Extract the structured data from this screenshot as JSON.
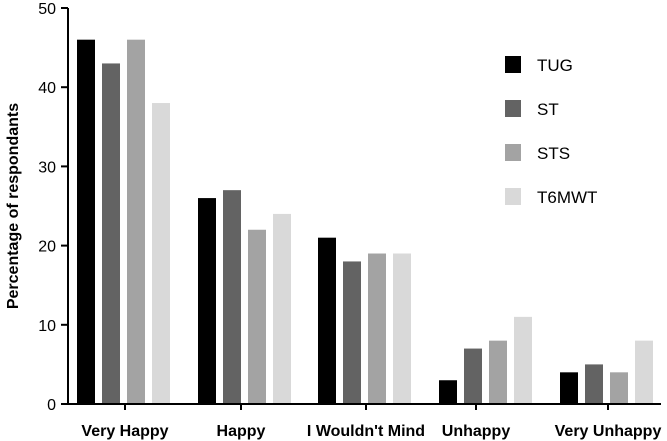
{
  "chart_data": {
    "type": "bar",
    "title": "",
    "xlabel": "",
    "ylabel": "Percentage of respondants",
    "ylim": [
      0,
      50
    ],
    "yticks": [
      0,
      10,
      20,
      30,
      40,
      50
    ],
    "grid": false,
    "legend_position": "top-right",
    "categories": [
      "Very Happy",
      "Happy",
      "I Wouldn't Mind",
      "Unhappy",
      "Very Unhappy"
    ],
    "series": [
      {
        "name": "TUG",
        "color": "#000000",
        "values": [
          46,
          26,
          21,
          3,
          4
        ]
      },
      {
        "name": "ST",
        "color": "#636363",
        "values": [
          43,
          27,
          18,
          7,
          5
        ]
      },
      {
        "name": "STS",
        "color": "#a3a3a3",
        "values": [
          46,
          22,
          19,
          8,
          4
        ]
      },
      {
        "name": "T6MWT",
        "color": "#d9d9d9",
        "values": [
          38,
          24,
          19,
          11,
          8
        ]
      }
    ]
  }
}
